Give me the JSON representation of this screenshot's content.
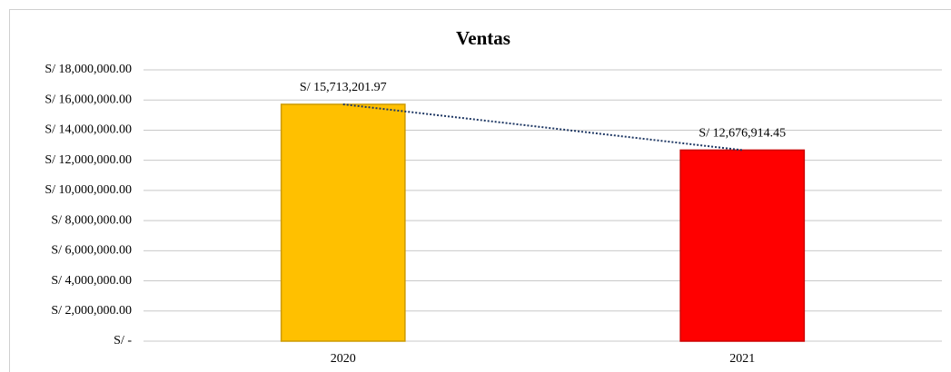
{
  "chart_data": {
    "type": "bar",
    "title": "Ventas",
    "categories": [
      "2020",
      "2021"
    ],
    "values": [
      15713201.97,
      12676914.45
    ],
    "value_labels": [
      "S/ 15,713,201.97",
      "S/ 12,676,914.45"
    ],
    "colors": [
      "#FFC000",
      "#FF0000"
    ],
    "ylim": [
      0,
      18000000
    ],
    "yticks": [
      {
        "value": 0,
        "label": "S/ -"
      },
      {
        "value": 2000000,
        "label": "S/ 2,000,000.00"
      },
      {
        "value": 4000000,
        "label": "S/ 4,000,000.00"
      },
      {
        "value": 6000000,
        "label": "S/ 6,000,000.00"
      },
      {
        "value": 8000000,
        "label": "S/ 8,000,000.00"
      },
      {
        "value": 10000000,
        "label": "S/ 10,000,000.00"
      },
      {
        "value": 12000000,
        "label": "S/ 12,000,000.00"
      },
      {
        "value": 14000000,
        "label": "S/ 14,000,000.00"
      },
      {
        "value": 16000000,
        "label": "S/ 16,000,000.00"
      },
      {
        "value": 18000000,
        "label": "S/ 18,000,000.00"
      }
    ],
    "grid": true,
    "trendline": true
  }
}
